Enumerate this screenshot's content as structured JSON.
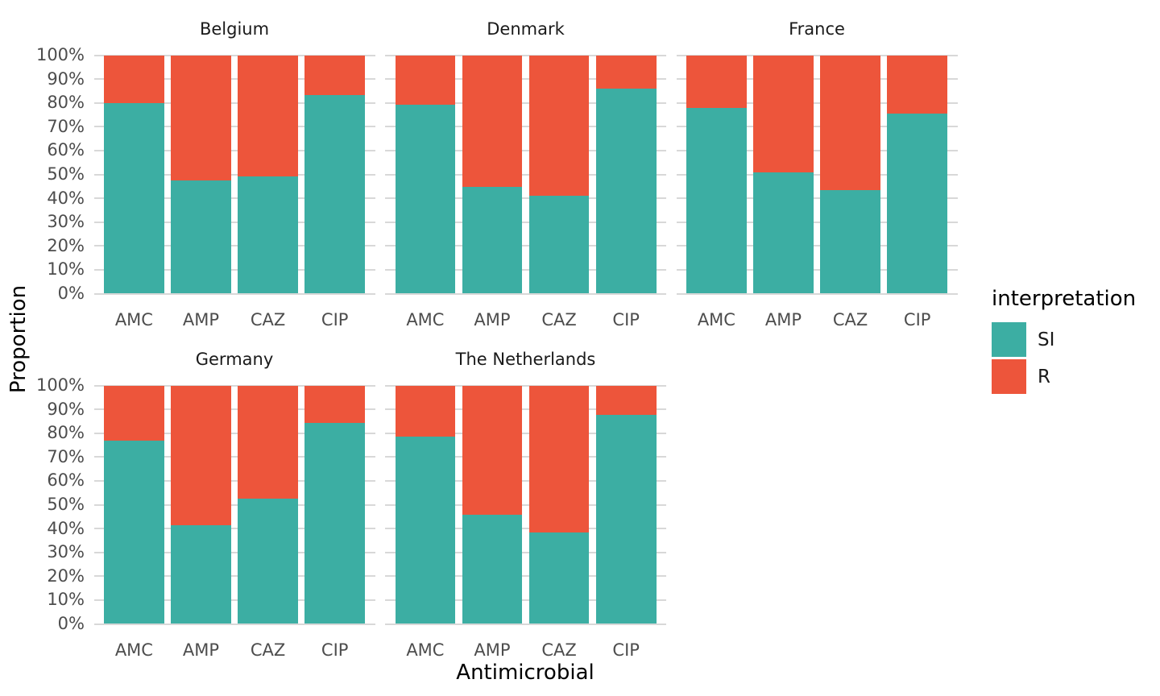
{
  "figure": {
    "background": "#ffffff",
    "grid_color": "#d8d8d8",
    "tick_text_color": "#4d4d4d"
  },
  "chart_data": {
    "type": "bar",
    "subtype": "stacked-100-percent",
    "title": "",
    "xlabel": "Antimicrobial",
    "ylabel": "Proportion",
    "ylim": [
      0,
      100
    ],
    "grid": true,
    "y_ticks": [
      "0%",
      "10%",
      "20%",
      "30%",
      "40%",
      "50%",
      "60%",
      "70%",
      "80%",
      "90%",
      "100%"
    ],
    "categories": [
      "AMC",
      "AMP",
      "CAZ",
      "CIP"
    ],
    "legend": {
      "title": "interpretation",
      "position": "right",
      "entries": [
        {
          "label": "SI",
          "color": "#3CAEA3"
        },
        {
          "label": "R",
          "color": "#ED553B"
        }
      ]
    },
    "colors": {
      "SI": "#3CAEA3",
      "R": "#ED553B"
    },
    "facets": [
      {
        "name": "Belgium",
        "series": [
          {
            "name": "SI",
            "values": [
              80.0,
              47.4,
              49.0,
              83.4
            ]
          },
          {
            "name": "R",
            "values": [
              20.0,
              52.6,
              51.0,
              16.6
            ]
          }
        ]
      },
      {
        "name": "Denmark",
        "series": [
          {
            "name": "SI",
            "values": [
              79.2,
              44.8,
              41.0,
              86.1
            ]
          },
          {
            "name": "R",
            "values": [
              20.8,
              55.2,
              59.0,
              13.9
            ]
          }
        ]
      },
      {
        "name": "France",
        "series": [
          {
            "name": "SI",
            "values": [
              78.0,
              50.8,
              43.4,
              75.5
            ]
          },
          {
            "name": "R",
            "values": [
              22.0,
              49.2,
              56.6,
              24.5
            ]
          }
        ]
      },
      {
        "name": "Germany",
        "series": [
          {
            "name": "SI",
            "values": [
              76.8,
              41.5,
              52.5,
              84.4
            ]
          },
          {
            "name": "R",
            "values": [
              23.2,
              58.5,
              47.5,
              15.6
            ]
          }
        ]
      },
      {
        "name": "The Netherlands",
        "series": [
          {
            "name": "SI",
            "values": [
              78.7,
              45.8,
              38.2,
              87.6
            ]
          },
          {
            "name": "R",
            "values": [
              21.3,
              54.2,
              61.8,
              12.4
            ]
          }
        ]
      }
    ]
  }
}
